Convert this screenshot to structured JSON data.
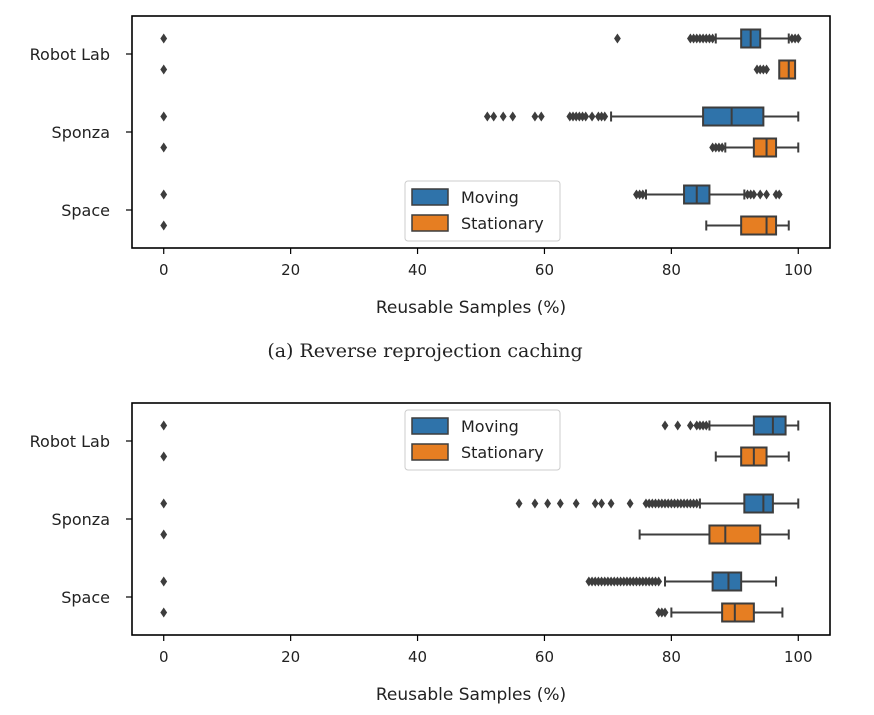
{
  "colors": {
    "Moving": "#2f73aa",
    "Stationary": "#e67e22",
    "line": "#3d3d3d"
  },
  "chart_data": [
    {
      "type": "boxplot",
      "orientation": "horizontal",
      "caption": "(a) Reverse reprojection caching",
      "xlabel": "Reusable Samples (%)",
      "xlim": [
        -5,
        105
      ],
      "xticks": [
        0,
        20,
        40,
        60,
        80,
        100
      ],
      "categories": [
        "Robot Lab",
        "Sponza",
        "Space"
      ],
      "legend": {
        "entries": [
          "Moving",
          "Stationary"
        ],
        "placement": "lower-center"
      },
      "series": [
        {
          "name": "Moving",
          "boxes": [
            {
              "category": "Robot Lab",
              "whisker_low": 87,
              "q1": 91,
              "median": 92.5,
              "q3": 94,
              "whisker_high": 98.5,
              "outliers": [
                0,
                71.5,
                83,
                83.5,
                84,
                84.5,
                85,
                85.5,
                86,
                86.5,
                99,
                99.5,
                100
              ]
            },
            {
              "category": "Sponza",
              "whisker_low": 70.5,
              "q1": 85,
              "median": 89.5,
              "q3": 94.5,
              "whisker_high": 100,
              "outliers": [
                0,
                51,
                52,
                53.5,
                55,
                58.5,
                59.5,
                64,
                64.5,
                65,
                65.5,
                66,
                66.5,
                67.5,
                68.5,
                69,
                69.5
              ]
            },
            {
              "category": "Space",
              "whisker_low": 76,
              "q1": 82,
              "median": 84,
              "q3": 86,
              "whisker_high": 91.5,
              "outliers": [
                0,
                74.5,
                75,
                75.5,
                92,
                92.5,
                93,
                94,
                95,
                96.5,
                97
              ]
            }
          ]
        },
        {
          "name": "Stationary",
          "boxes": [
            {
              "category": "Robot Lab",
              "whisker_low": null,
              "q1": 97,
              "median": 98.5,
              "q3": 99.5,
              "whisker_high": null,
              "outliers": [
                0,
                93.5,
                94,
                94.5,
                95
              ]
            },
            {
              "category": "Sponza",
              "whisker_low": 88.5,
              "q1": 93,
              "median": 95,
              "q3": 96.5,
              "whisker_high": 100,
              "outliers": [
                0,
                86.5,
                87,
                87.5,
                88
              ]
            },
            {
              "category": "Space",
              "whisker_low": 85.5,
              "q1": 91,
              "median": 95,
              "q3": 96.5,
              "whisker_high": 98.5,
              "outliers": [
                0
              ]
            }
          ]
        }
      ]
    },
    {
      "type": "boxplot",
      "orientation": "horizontal",
      "caption": "",
      "xlabel": "Reusable Samples (%)",
      "xlim": [
        -5,
        105
      ],
      "xticks": [
        0,
        20,
        40,
        60,
        80,
        100
      ],
      "categories": [
        "Robot Lab",
        "Sponza",
        "Space"
      ],
      "legend": {
        "entries": [
          "Moving",
          "Stationary"
        ],
        "placement": "upper-center"
      },
      "series": [
        {
          "name": "Moving",
          "boxes": [
            {
              "category": "Robot Lab",
              "whisker_low": 86,
              "q1": 93,
              "median": 96,
              "q3": 98,
              "whisker_high": 100,
              "outliers": [
                0,
                79,
                81,
                83,
                84,
                84.5,
                85,
                85.5
              ]
            },
            {
              "category": "Sponza",
              "whisker_low": 84.5,
              "q1": 91.5,
              "median": 94.5,
              "q3": 96,
              "whisker_high": 100,
              "outliers": [
                0,
                56,
                58.5,
                60.5,
                62.5,
                65,
                68,
                69,
                70.5,
                73.5,
                76,
                76.5,
                77,
                77.5,
                78,
                78.5,
                79,
                79.5,
                80,
                80.5,
                81,
                81.5,
                82,
                82.5,
                83,
                83.5,
                84
              ]
            },
            {
              "category": "Space",
              "whisker_low": 79,
              "q1": 86.5,
              "median": 89,
              "q3": 91,
              "whisker_high": 96.5,
              "outliers": [
                0,
                67,
                67.5,
                68,
                68.5,
                69,
                69.5,
                70,
                70.5,
                71,
                71.5,
                72,
                72.5,
                73,
                73.5,
                74,
                74.5,
                75,
                75.5,
                76,
                76.5,
                77,
                77.5,
                78
              ]
            }
          ]
        },
        {
          "name": "Stationary",
          "boxes": [
            {
              "category": "Robot Lab",
              "whisker_low": 87,
              "q1": 91,
              "median": 93,
              "q3": 95,
              "whisker_high": 98.5,
              "outliers": [
                0
              ]
            },
            {
              "category": "Sponza",
              "whisker_low": 75,
              "q1": 86,
              "median": 88.5,
              "q3": 94,
              "whisker_high": 98.5,
              "outliers": [
                0
              ]
            },
            {
              "category": "Space",
              "whisker_low": 80,
              "q1": 88,
              "median": 90,
              "q3": 93,
              "whisker_high": 97.5,
              "outliers": [
                0,
                78,
                78.5,
                79
              ]
            }
          ]
        }
      ]
    }
  ]
}
